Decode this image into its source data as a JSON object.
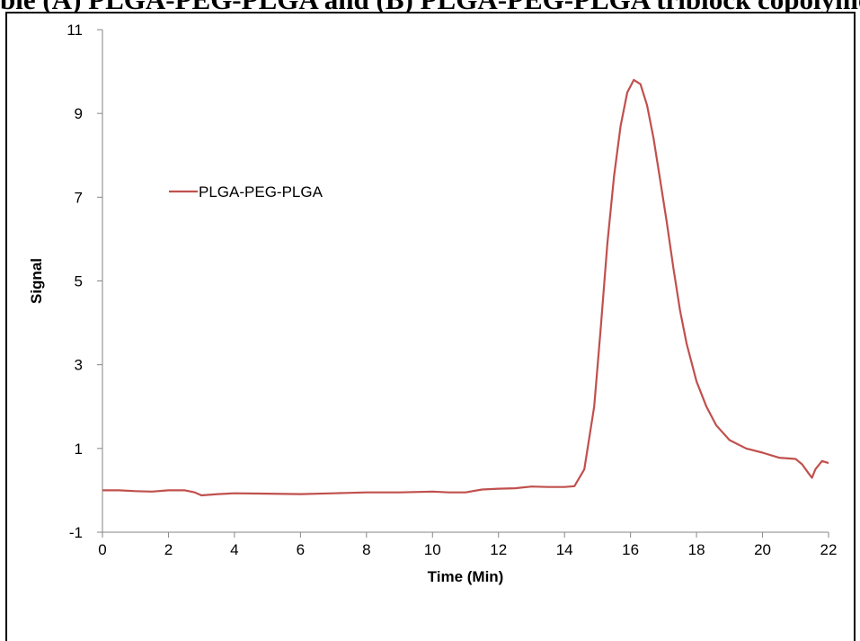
{
  "page_title_cut": "ble (A) PLGA-PEG-PLGA and (B) PLGA-PEG-PLGA triblock copolymer",
  "chart_data": {
    "type": "line",
    "title": "",
    "xlabel": "Time (Min)",
    "ylabel": "Signal",
    "xlim": [
      0,
      22
    ],
    "ylim": [
      -1,
      11
    ],
    "xticks": [
      0,
      2,
      4,
      6,
      8,
      10,
      12,
      14,
      16,
      18,
      20,
      22
    ],
    "yticks": [
      -1,
      1,
      3,
      5,
      7,
      9,
      11
    ],
    "grid": false,
    "legend_position": "upper-left",
    "series": [
      {
        "name": "PLGA-PEG-PLGA",
        "color": "#c0504d",
        "x": [
          0,
          0.5,
          1,
          1.5,
          2,
          2.5,
          2.8,
          3,
          3.5,
          4,
          5,
          6,
          7,
          8,
          9,
          10,
          10.5,
          11,
          11.5,
          12,
          12.5,
          13,
          13.5,
          14,
          14.3,
          14.6,
          14.9,
          15.1,
          15.3,
          15.5,
          15.7,
          15.9,
          16.1,
          16.3,
          16.5,
          16.7,
          16.9,
          17.1,
          17.3,
          17.5,
          17.7,
          18,
          18.3,
          18.6,
          19,
          19.5,
          20,
          20.5,
          21,
          21.2,
          21.4,
          21.5,
          21.6,
          21.8,
          22
        ],
        "y": [
          0.0,
          0.0,
          -0.02,
          -0.03,
          0.0,
          0.0,
          -0.05,
          -0.12,
          -0.09,
          -0.07,
          -0.08,
          -0.09,
          -0.07,
          -0.05,
          -0.05,
          -0.03,
          -0.05,
          -0.05,
          0.02,
          0.04,
          0.05,
          0.09,
          0.08,
          0.08,
          0.1,
          0.5,
          2.0,
          3.9,
          5.9,
          7.5,
          8.7,
          9.5,
          9.8,
          9.7,
          9.2,
          8.4,
          7.4,
          6.4,
          5.3,
          4.3,
          3.5,
          2.6,
          2.0,
          1.55,
          1.2,
          1.0,
          0.9,
          0.78,
          0.75,
          0.62,
          0.4,
          0.3,
          0.5,
          0.7,
          0.65
        ]
      }
    ]
  }
}
